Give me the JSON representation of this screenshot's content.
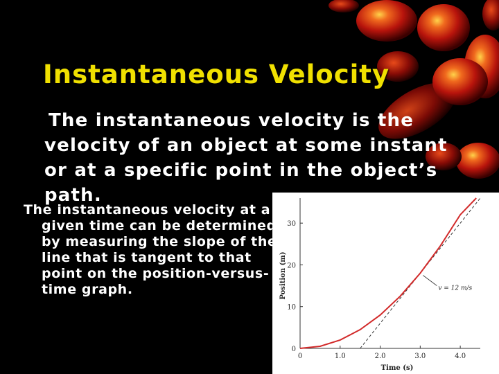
{
  "slide": {
    "title": "Instantaneous Velocity",
    "paragraph1": "The instantaneous velocity is the velocity of an object at some instant or at a specific point in the object’s path.",
    "paragraph2": "The instantaneous velocity at a given time can be determined by measuring the slope of the line that is tangent to that point on the position-versus-time graph.",
    "colors": {
      "background": "#000000",
      "title": "#f0e000",
      "text": "#ffffff",
      "curve": "#d22a2a",
      "orb": "#cc1a10"
    }
  },
  "chart_data": {
    "type": "line",
    "title": "",
    "xlabel": "Time (s)",
    "ylabel": "Position (m)",
    "xlim": [
      0,
      4.5
    ],
    "ylim": [
      0,
      36
    ],
    "x_ticks": [
      "0",
      "1.0",
      "2.0",
      "3.0",
      "4.0"
    ],
    "y_ticks": [
      "0",
      "10",
      "20",
      "30"
    ],
    "grid": false,
    "series": [
      {
        "x": [
          0,
          0.5,
          1.0,
          1.5,
          2.0,
          2.5,
          3.0,
          3.5,
          4.0,
          4.4
        ],
        "values": [
          0,
          0.5,
          2.0,
          4.5,
          8.0,
          12.5,
          18.0,
          24.5,
          32.0,
          38.7
        ]
      }
    ],
    "tangent": {
      "x": [
        1.5,
        4.5
      ],
      "values": [
        0,
        36
      ],
      "style": "dashed"
    },
    "tangent_point": {
      "x": 3.0,
      "y": 18.0
    },
    "annotation": "v = 12 m/s"
  }
}
